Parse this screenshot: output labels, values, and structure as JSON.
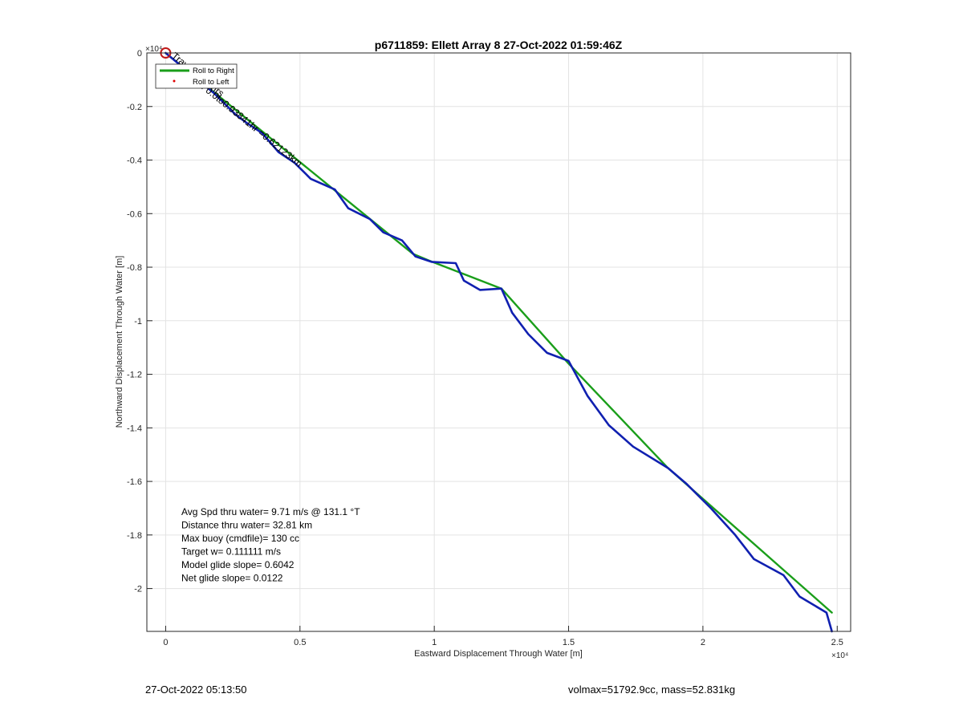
{
  "chart_data": {
    "type": "line",
    "title": "p6711859: Ellett Array 8 27-Oct-2022 01:59:46Z",
    "xlabel": "Eastward Displacement Through Water [m]",
    "ylabel": "Northward Displacement Through Water [m]",
    "xlim": [
      -700,
      25500
    ],
    "ylim": [
      -21600,
      0
    ],
    "x_ticks": [
      0,
      5000,
      10000,
      15000,
      20000,
      25000
    ],
    "x_tick_labels": [
      "0",
      "0.5",
      "1",
      "1.5",
      "2",
      "2.5"
    ],
    "y_ticks": [
      0,
      -2000,
      -4000,
      -6000,
      -8000,
      -10000,
      -12000,
      -14000,
      -16000,
      -18000,
      -20000
    ],
    "y_tick_labels": [
      "0",
      "-0.2",
      "-0.4",
      "-0.6",
      "-0.8",
      "-1",
      "-1.2",
      "-1.4",
      "-1.6",
      "-1.8",
      "-2"
    ],
    "x_exponent": "×10⁴",
    "y_exponent": "×10⁴",
    "grid": true,
    "legend_position": "top-left",
    "legend": [
      {
        "label": "Roll to Right",
        "color": "#1a9e1a",
        "style": "line"
      },
      {
        "label": "Roll to Left",
        "color": "#e00000",
        "style": "dot"
      }
    ],
    "series": [
      {
        "color": "#1a9e1a",
        "style": "model-segments",
        "points": [
          [
            0,
            0
          ],
          [
            9200,
            -7500
          ],
          [
            9800,
            -7750
          ],
          [
            12500,
            -8800
          ],
          [
            15000,
            -11600
          ],
          [
            18700,
            -15500
          ],
          [
            24800,
            -20900
          ]
        ]
      },
      {
        "color": "#1020b0",
        "style": "track",
        "points": [
          [
            0,
            0
          ],
          [
            600,
            -500
          ],
          [
            1200,
            -1000
          ],
          [
            1800,
            -1500
          ],
          [
            2600,
            -2300
          ],
          [
            3000,
            -2600
          ],
          [
            3600,
            -3000
          ],
          [
            4200,
            -3700
          ],
          [
            4800,
            -4100
          ],
          [
            5400,
            -4700
          ],
          [
            6300,
            -5100
          ],
          [
            6800,
            -5800
          ],
          [
            7600,
            -6200
          ],
          [
            8100,
            -6700
          ],
          [
            8800,
            -7000
          ],
          [
            9300,
            -7600
          ],
          [
            9900,
            -7800
          ],
          [
            10800,
            -7850
          ],
          [
            11100,
            -8500
          ],
          [
            11700,
            -8850
          ],
          [
            12500,
            -8800
          ],
          [
            12900,
            -9700
          ],
          [
            13500,
            -10500
          ],
          [
            14200,
            -11200
          ],
          [
            15000,
            -11500
          ],
          [
            15700,
            -12800
          ],
          [
            16500,
            -13900
          ],
          [
            17400,
            -14700
          ],
          [
            18700,
            -15500
          ],
          [
            19400,
            -16100
          ],
          [
            20300,
            -17000
          ],
          [
            21200,
            -18000
          ],
          [
            21900,
            -18900
          ],
          [
            23000,
            -19500
          ],
          [
            23600,
            -20300
          ],
          [
            24600,
            -20900
          ],
          [
            24800,
            -21600
          ]
        ]
      }
    ],
    "markers": [
      {
        "x": 0,
        "y": 0,
        "shape": "circle",
        "color": "#c01818"
      }
    ],
    "annotations": [
      {
        "text": "Travel: 0.55hrs",
        "x": 200,
        "y": -150,
        "angle": 39
      },
      {
        "text": "Drift: 0.0to0.93841hr =0.62123km",
        "x": 800,
        "y": -900,
        "angle": 39
      }
    ],
    "stats": [
      "Avg Spd thru water=  9.71 m/s @ 131.1 °T",
      "Distance thru water= 32.81 km",
      "Max buoy (cmdfile)= 130 cc",
      "Target w= 0.111111 m/s",
      "Model glide slope= 0.6042",
      "Net glide slope= 0.0122"
    ]
  },
  "footer": {
    "left": "27-Oct-2022 05:13:50",
    "right": "volmax=51792.9cc, mass=52.831kg"
  }
}
